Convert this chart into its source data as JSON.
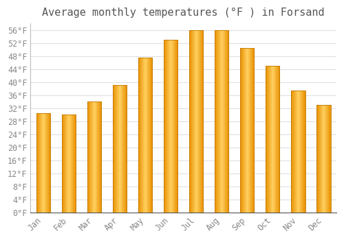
{
  "title": "Average monthly temperatures (°F ) in Forsand",
  "months": [
    "Jan",
    "Feb",
    "Mar",
    "Apr",
    "May",
    "Jun",
    "Jul",
    "Aug",
    "Sep",
    "Oct",
    "Nov",
    "Dec"
  ],
  "values": [
    30.5,
    30.0,
    34.0,
    39.0,
    47.5,
    53.0,
    56.0,
    56.0,
    50.5,
    45.0,
    37.5,
    33.0
  ],
  "bar_edge_color": "#E8A000",
  "bar_center_color": "#FFD060",
  "bar_mid_color": "#FFA500",
  "background_color": "#ffffff",
  "plot_bg_color": "#ffffff",
  "grid_color": "#e0e0e0",
  "ylabel_step": 4,
  "ymin": 0,
  "ymax": 58,
  "title_fontsize": 11,
  "tick_fontsize": 8.5,
  "tick_color": "#888888",
  "title_color": "#555555",
  "bar_width": 0.55,
  "gradient_steps": 50
}
